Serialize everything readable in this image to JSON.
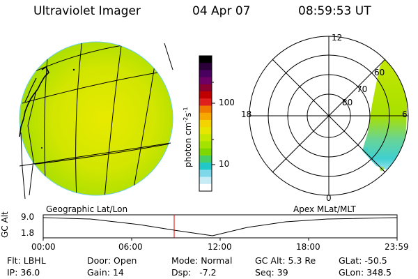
{
  "header": {
    "title": "Ultraviolet Imager",
    "date": "04 Apr 07",
    "time": "08:59:53 UT"
  },
  "colorbar": {
    "unit_label": "photon cm",
    "unit_sup1": "-2",
    "unit_mid": "s",
    "unit_sup2": "-1",
    "ticks": [
      "100",
      "10"
    ],
    "colors": [
      "#000000",
      "#2b003a",
      "#4a005e",
      "#6e0066",
      "#8a0030",
      "#c00000",
      "#e0201e",
      "#f07a00",
      "#f7a800",
      "#f4d400",
      "#e6e600",
      "#c6e800",
      "#a4e200",
      "#7ed800",
      "#46cf66",
      "#22c8c8",
      "#7ed8ea",
      "#c8ecf6",
      "#ffffff"
    ]
  },
  "left_map": {
    "caption": "Geographic Lat/Lon"
  },
  "polar": {
    "caption": "Apex MLat/MLT",
    "mlt_labels": {
      "top": "12",
      "left": "18",
      "right": "6",
      "bottom": "0"
    },
    "lat_labels": [
      "60",
      "70",
      "80"
    ]
  },
  "timeline": {
    "axis_label": "GC Alt",
    "y_labels": [
      "9.0",
      "1.8"
    ],
    "x_labels": [
      "00:00",
      "06:00",
      "12:00",
      "18:00",
      "23:59"
    ],
    "marker_time": "08:59:53"
  },
  "info": {
    "flt_label": "Flt:",
    "flt_value": "LBHL",
    "ip_label": "IP:",
    "ip_value": "36.0",
    "door_label": "Door:",
    "door_value": "Open",
    "gain_label": "Gain:",
    "gain_value": "14",
    "mode_label": "Mode:",
    "mode_value": "Normal",
    "dsp_label": "Dsp:",
    "dsp_value": "-7.2",
    "gcalt_label": "GC Alt:",
    "gcalt_value": "5.3 Re",
    "seq_label": "Seq:",
    "seq_value": "39",
    "glat_label": "GLat:",
    "glat_value": "-50.5",
    "glon_label": "GLon:",
    "glon_value": "348.5"
  }
}
